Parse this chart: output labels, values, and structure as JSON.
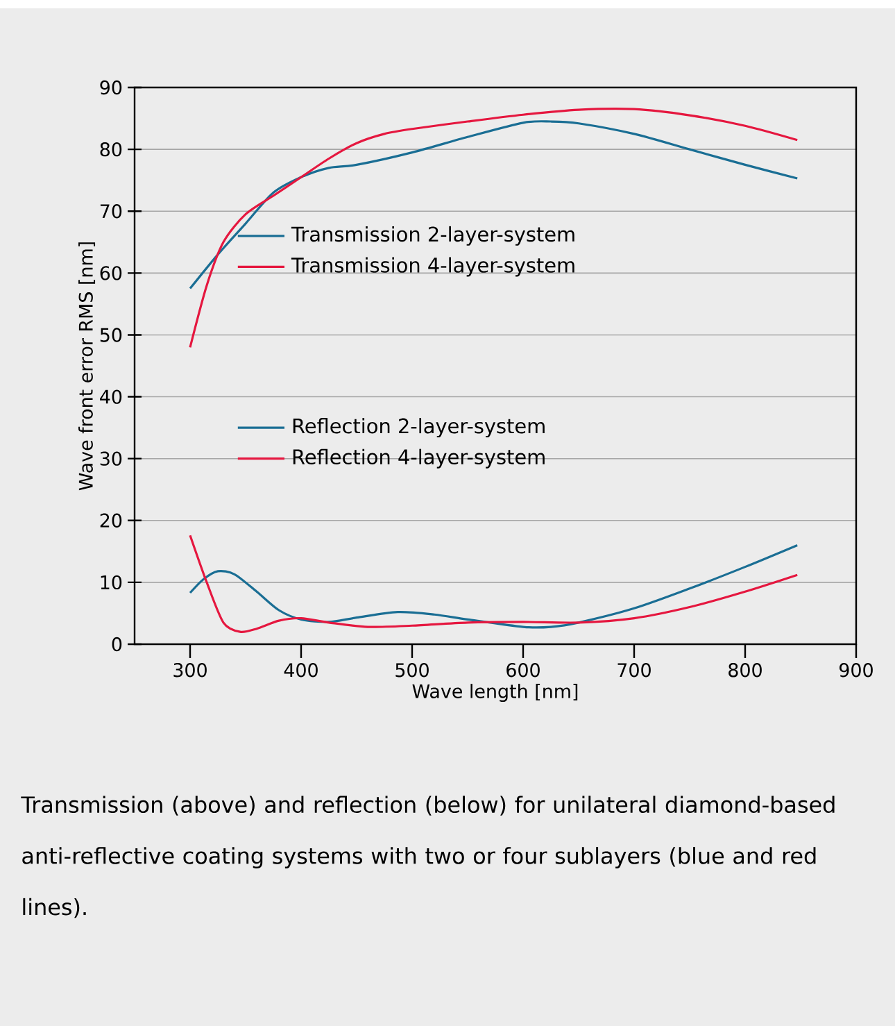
{
  "chart_data": {
    "type": "line",
    "xlabel": "Wave length [nm]",
    "ylabel": "Wave front error RMS [nm]",
    "xlim": [
      250,
      900
    ],
    "ylim": [
      0,
      90
    ],
    "xticks": [
      300,
      400,
      500,
      600,
      700,
      800,
      900
    ],
    "yticks": [
      0,
      10,
      20,
      30,
      40,
      50,
      60,
      70,
      80,
      90
    ],
    "grid": "y",
    "legend": "left",
    "marker": "none",
    "line_style": "solid",
    "annotations": [
      "Transmission (above) and reflection (below) for unilateral diamond-based anti-reflective coating systems with two or four sublayers (blue and red lines)."
    ],
    "series": [
      {
        "name": "Transmission 2-layer-system",
        "color": "#1a6e94",
        "x": [
          300,
          325,
          350,
          375,
          400,
          425,
          450,
          500,
          550,
          600,
          625,
          650,
          700,
          750,
          800,
          847
        ],
        "values": [
          57.5,
          63,
          68,
          73,
          75.5,
          77,
          77.5,
          79.5,
          82,
          84.3,
          84.5,
          84.2,
          82.5,
          80,
          77.5,
          75.3
        ]
      },
      {
        "name": "Transmission 4-layer-system",
        "color": "#e5173f",
        "x": [
          300,
          315,
          330,
          350,
          375,
          400,
          425,
          450,
          475,
          500,
          550,
          600,
          650,
          700,
          750,
          800,
          847
        ],
        "values": [
          48,
          58,
          65,
          69.5,
          72.5,
          75.5,
          78.5,
          81,
          82.5,
          83.3,
          84.5,
          85.6,
          86.4,
          86.5,
          85.5,
          83.8,
          81.5
        ]
      },
      {
        "name": "Reflection 2-layer-system",
        "color": "#1a6e94",
        "x": [
          300,
          312,
          325,
          340,
          360,
          380,
          400,
          425,
          450,
          487,
          520,
          550,
          600,
          625,
          650,
          700,
          750,
          800,
          847
        ],
        "values": [
          8.3,
          10.5,
          11.8,
          11.3,
          8.5,
          5.5,
          4,
          3.6,
          4.3,
          5.2,
          4.8,
          4,
          2.8,
          2.8,
          3.5,
          5.8,
          9,
          12.5,
          16
        ]
      },
      {
        "name": "Reflection 4-layer-system",
        "color": "#e5173f",
        "x": [
          300,
          315,
          330,
          345,
          360,
          380,
          400,
          425,
          460,
          500,
          550,
          600,
          650,
          700,
          750,
          800,
          847
        ],
        "values": [
          17.6,
          10,
          3.5,
          2,
          2.5,
          3.8,
          4.2,
          3.5,
          2.8,
          3,
          3.5,
          3.6,
          3.5,
          4.2,
          6,
          8.5,
          11.2
        ]
      }
    ]
  }
}
